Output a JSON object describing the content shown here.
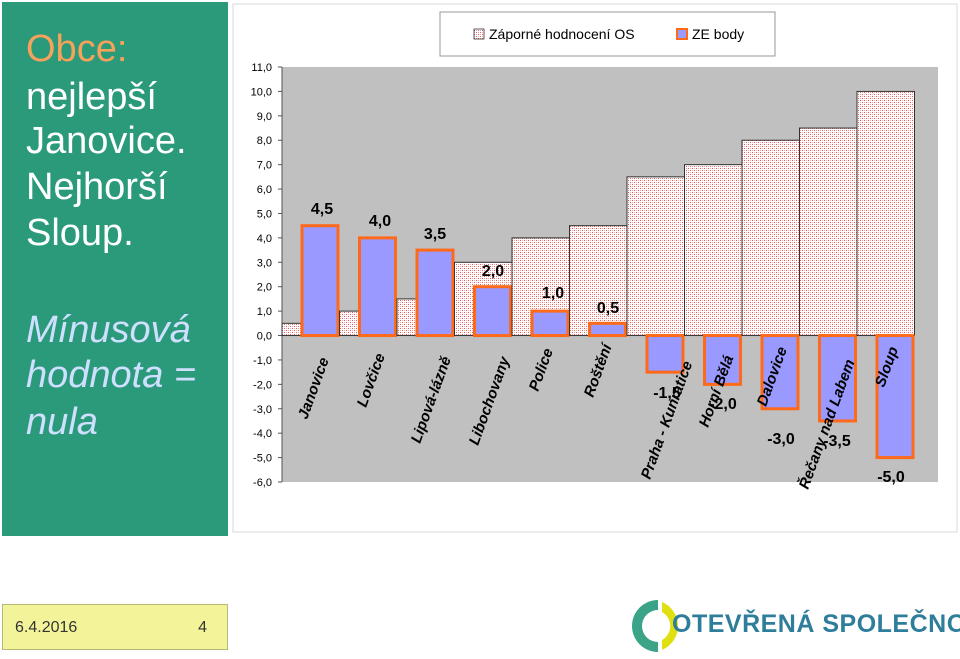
{
  "sidebar": {
    "line1": "Obce:",
    "line2": "nejlepší",
    "line3": "Janovice.",
    "line4": "Nejhorší",
    "line5": "Sloup.",
    "line6": "Mínusová",
    "line7": "hodnota =",
    "line8": "nula"
  },
  "colors": {
    "sidebar_bg": "#2b9a7b",
    "orange_text": "#f5a25a",
    "white_text": "#ffffff",
    "light_blue_text": "#cfe0ff",
    "bar_blue": "#9999ff",
    "bar_border_orange": "#ff6a1a",
    "hatch_red": "#e55b5b",
    "plot_bg": "#c0c0c0"
  },
  "footer": {
    "date": "6.4.2016",
    "page": "4"
  },
  "logo": {
    "text": "OTEVŘENÁ SPOLEČNOST"
  },
  "chart_data": {
    "type": "bar",
    "categories": [
      "Janovice",
      "Lovčice",
      "Lipová-lázně",
      "Libochovany",
      "Police",
      "Roštění",
      "Praha - Kunratice",
      "Horní Bělá",
      "Dalovice",
      "Řečany nad Labem",
      "Sloup"
    ],
    "series": [
      {
        "name": "Záporné hodnocení OS",
        "values": [
          0.5,
          1.0,
          1.5,
          3.0,
          4.0,
          4.5,
          6.5,
          7.0,
          8.0,
          8.5,
          10.0
        ]
      },
      {
        "name": "ZE body",
        "values": [
          4.5,
          4.0,
          3.5,
          2.0,
          1.0,
          0.5,
          -1.5,
          -2.0,
          -3.0,
          -3.5,
          -5.0
        ]
      }
    ],
    "data_labels": [
      "4,5",
      "4,0",
      "3,5",
      "2,0",
      "1,0",
      "0,5",
      "-1,5",
      "-2,0",
      "-3,0",
      "-3,5",
      "-5,0"
    ],
    "yticks": [
      "11,0",
      "10,0",
      "9,0",
      "8,0",
      "7,0",
      "6,0",
      "5,0",
      "4,0",
      "3,0",
      "2,0",
      "1,0",
      "0,0",
      "-1,0",
      "-2,0",
      "-3,0",
      "-4,0",
      "-5,0",
      "-6,0"
    ],
    "ylim": [
      -6,
      11
    ],
    "legend": "top",
    "grid": false
  }
}
